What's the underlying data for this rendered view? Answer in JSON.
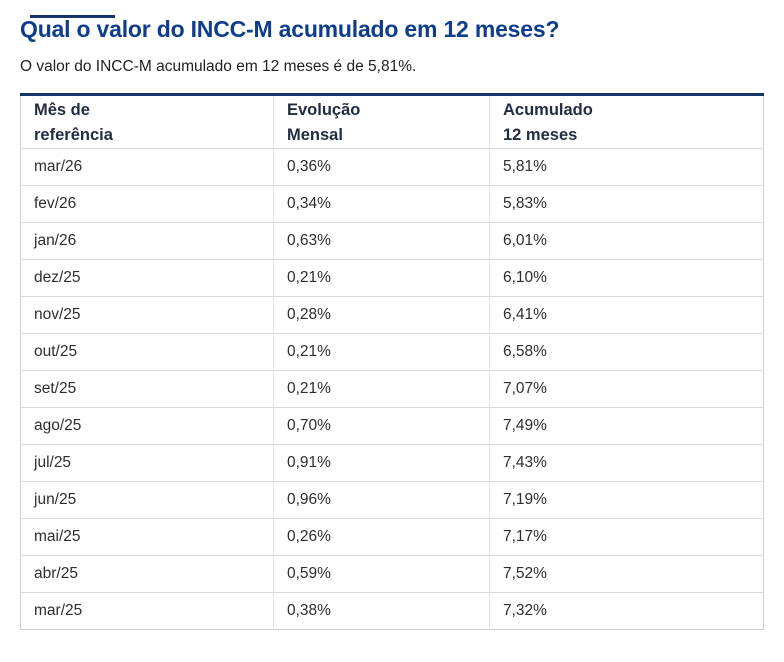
{
  "page": {
    "title": "Qual o valor do INCC-M acumulado em 12 meses?",
    "subtitle": "O valor do INCC-M acumulado em 12 meses é de 5,81%."
  },
  "table": {
    "columns": [
      {
        "line1": "Mês de",
        "line2": "referência"
      },
      {
        "line1": "Evolução",
        "line2": "Mensal"
      },
      {
        "line1": "Acumulado",
        "line2": "12 meses"
      }
    ],
    "rows": [
      {
        "month": "mar/26",
        "monthly": "0,36%",
        "accumulated": "5,81%"
      },
      {
        "month": "fev/26",
        "monthly": "0,34%",
        "accumulated": "5,83%"
      },
      {
        "month": "jan/26",
        "monthly": "0,63%",
        "accumulated": "6,01%"
      },
      {
        "month": "dez/25",
        "monthly": "0,21%",
        "accumulated": "6,10%"
      },
      {
        "month": "nov/25",
        "monthly": "0,28%",
        "accumulated": "6,41%"
      },
      {
        "month": "out/25",
        "monthly": "0,21%",
        "accumulated": "6,58%"
      },
      {
        "month": "set/25",
        "monthly": "0,21%",
        "accumulated": "7,07%"
      },
      {
        "month": "ago/25",
        "monthly": "0,70%",
        "accumulated": "7,49%"
      },
      {
        "month": "jul/25",
        "monthly": "0,91%",
        "accumulated": "7,43%"
      },
      {
        "month": "jun/25",
        "monthly": "0,96%",
        "accumulated": "7,19%"
      },
      {
        "month": "mai/25",
        "monthly": "0,26%",
        "accumulated": "7,17%"
      },
      {
        "month": "abr/25",
        "monthly": "0,59%",
        "accumulated": "7,52%"
      },
      {
        "month": "mar/25",
        "monthly": "0,38%",
        "accumulated": "7,32%"
      }
    ]
  },
  "colors": {
    "title_blue": "#0e3d8c",
    "table_top_border": "#17376b",
    "header_text": "#232d42",
    "body_text": "#2e2e2e",
    "row_divider": "#d9d9d9",
    "column_divider": "#e4e4e4",
    "outer_border": "#cfcfcf"
  }
}
